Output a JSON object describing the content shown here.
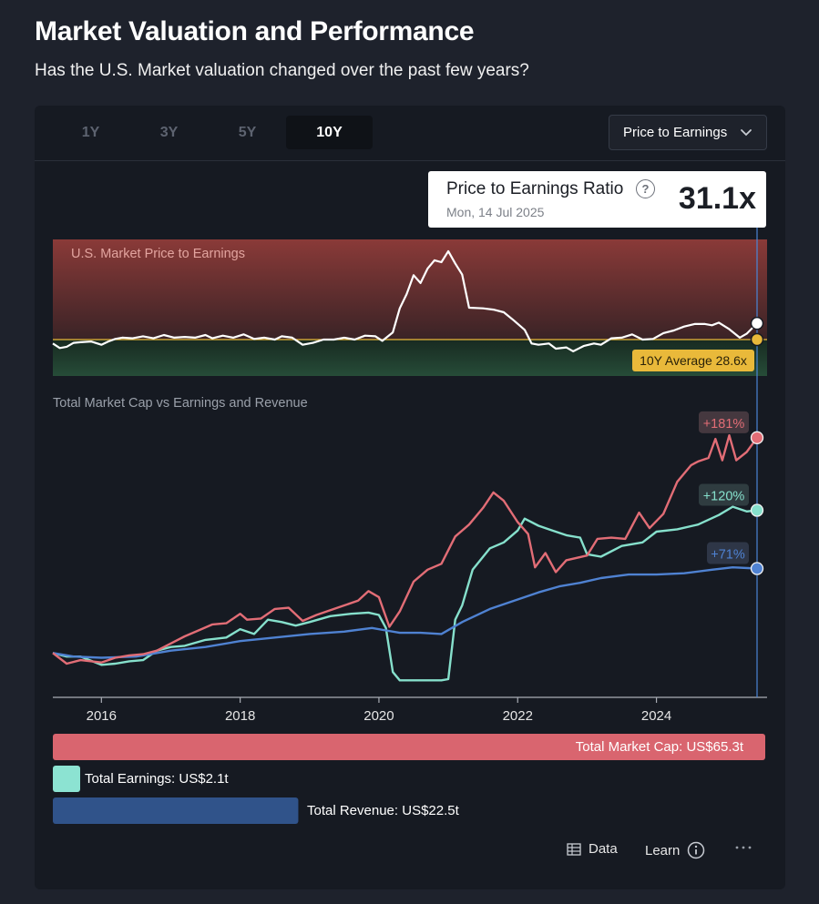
{
  "page": {
    "title": "Market Valuation and Performance",
    "subtitle": "Has the U.S. Market valuation changed over the past few years?"
  },
  "controls": {
    "range_tabs": [
      "1Y",
      "3Y",
      "5Y",
      "10Y"
    ],
    "active_range": "10Y",
    "metric_select": "Price to Earnings"
  },
  "tooltip": {
    "title": "Price to Earnings Ratio",
    "help_icon": "question-circle-icon",
    "date": "Mon, 14 Jul 2025",
    "value": "31.1x"
  },
  "footer": {
    "data_label": "Data",
    "learn_label": "Learn",
    "data_icon": "table-icon",
    "learn_icon": "info-icon",
    "more_icon": "more-horizontal-icon"
  },
  "chart_data": [
    {
      "type": "line",
      "title": "U.S. Market Price to Earnings",
      "average_label": "10Y Average 28.6x",
      "average": 28.6,
      "colors": {
        "line": "#ffffff",
        "average": "#e9b93a",
        "above_band": "#8a3a38",
        "below_band": "#264c38"
      },
      "series": [
        {
          "name": "Price to Earnings",
          "points": [
            [
              2015.3,
              28.0
            ],
            [
              2015.4,
              27.3
            ],
            [
              2015.5,
              27.5
            ],
            [
              2015.6,
              28.1
            ],
            [
              2015.7,
              28.2
            ],
            [
              2015.85,
              28.3
            ],
            [
              2016.0,
              27.8
            ],
            [
              2016.1,
              28.3
            ],
            [
              2016.2,
              28.7
            ],
            [
              2016.3,
              28.9
            ],
            [
              2016.45,
              28.8
            ],
            [
              2016.6,
              29.1
            ],
            [
              2016.75,
              28.8
            ],
            [
              2016.9,
              29.3
            ],
            [
              2017.05,
              28.9
            ],
            [
              2017.2,
              29.0
            ],
            [
              2017.35,
              28.9
            ],
            [
              2017.5,
              29.3
            ],
            [
              2017.6,
              28.8
            ],
            [
              2017.75,
              29.2
            ],
            [
              2017.9,
              28.9
            ],
            [
              2018.05,
              29.4
            ],
            [
              2018.2,
              28.7
            ],
            [
              2018.35,
              28.9
            ],
            [
              2018.5,
              28.6
            ],
            [
              2018.6,
              29.1
            ],
            [
              2018.75,
              28.9
            ],
            [
              2018.9,
              27.8
            ],
            [
              2019.05,
              28.1
            ],
            [
              2019.2,
              28.6
            ],
            [
              2019.35,
              28.6
            ],
            [
              2019.5,
              28.9
            ],
            [
              2019.65,
              28.6
            ],
            [
              2019.8,
              29.2
            ],
            [
              2019.95,
              29.1
            ],
            [
              2020.05,
              28.4
            ],
            [
              2020.2,
              29.7
            ],
            [
              2020.3,
              33.4
            ],
            [
              2020.4,
              35.6
            ],
            [
              2020.5,
              38.5
            ],
            [
              2020.6,
              37.3
            ],
            [
              2020.7,
              39.5
            ],
            [
              2020.8,
              40.8
            ],
            [
              2020.9,
              40.5
            ],
            [
              2021.0,
              42.2
            ],
            [
              2021.1,
              40.3
            ],
            [
              2021.2,
              38.6
            ],
            [
              2021.3,
              33.5
            ],
            [
              2021.5,
              33.4
            ],
            [
              2021.65,
              33.2
            ],
            [
              2021.8,
              32.8
            ],
            [
              2021.95,
              31.5
            ],
            [
              2022.1,
              30.1
            ],
            [
              2022.2,
              28.0
            ],
            [
              2022.3,
              27.8
            ],
            [
              2022.45,
              28.0
            ],
            [
              2022.55,
              27.2
            ],
            [
              2022.7,
              27.4
            ],
            [
              2022.8,
              26.8
            ],
            [
              2022.95,
              27.6
            ],
            [
              2023.1,
              28.0
            ],
            [
              2023.2,
              27.8
            ],
            [
              2023.35,
              28.8
            ],
            [
              2023.5,
              28.9
            ],
            [
              2023.65,
              29.4
            ],
            [
              2023.8,
              28.6
            ],
            [
              2023.95,
              28.7
            ],
            [
              2024.1,
              29.6
            ],
            [
              2024.25,
              30.0
            ],
            [
              2024.4,
              30.6
            ],
            [
              2024.55,
              31.0
            ],
            [
              2024.7,
              31.0
            ],
            [
              2024.8,
              30.8
            ],
            [
              2024.9,
              31.2
            ],
            [
              2025.05,
              30.2
            ],
            [
              2025.2,
              28.9
            ],
            [
              2025.3,
              29.5
            ],
            [
              2025.45,
              31.1
            ]
          ]
        }
      ]
    },
    {
      "type": "line",
      "title": "Total Market Cap vs Earnings and Revenue",
      "xlim": [
        2015.3,
        2025.45
      ],
      "x_ticks": [
        2016,
        2018,
        2020,
        2022,
        2024
      ],
      "series": [
        {
          "name": "Total Market Cap",
          "color": "#e26d76",
          "end_label": "+181%",
          "points": [
            [
              2015.3,
              0
            ],
            [
              2015.5,
              -9
            ],
            [
              2015.7,
              -6
            ],
            [
              2016.0,
              -8
            ],
            [
              2016.2,
              -4
            ],
            [
              2016.4,
              -2
            ],
            [
              2016.6,
              -1
            ],
            [
              2016.8,
              2
            ],
            [
              2017.0,
              8
            ],
            [
              2017.2,
              14
            ],
            [
              2017.4,
              19
            ],
            [
              2017.6,
              24
            ],
            [
              2017.8,
              25
            ],
            [
              2018.0,
              33
            ],
            [
              2018.1,
              28
            ],
            [
              2018.3,
              29
            ],
            [
              2018.5,
              37
            ],
            [
              2018.7,
              38
            ],
            [
              2018.9,
              27
            ],
            [
              2019.1,
              32
            ],
            [
              2019.3,
              36
            ],
            [
              2019.5,
              40
            ],
            [
              2019.7,
              44
            ],
            [
              2019.85,
              52
            ],
            [
              2020.0,
              47
            ],
            [
              2020.15,
              22
            ],
            [
              2020.3,
              35
            ],
            [
              2020.5,
              60
            ],
            [
              2020.7,
              70
            ],
            [
              2020.9,
              75
            ],
            [
              2021.1,
              98
            ],
            [
              2021.3,
              108
            ],
            [
              2021.5,
              122
            ],
            [
              2021.65,
              135
            ],
            [
              2021.8,
              128
            ],
            [
              2022.0,
              110
            ],
            [
              2022.15,
              100
            ],
            [
              2022.25,
              72
            ],
            [
              2022.4,
              84
            ],
            [
              2022.55,
              68
            ],
            [
              2022.7,
              78
            ],
            [
              2022.85,
              80
            ],
            [
              2023.0,
              82
            ],
            [
              2023.15,
              96
            ],
            [
              2023.35,
              97
            ],
            [
              2023.55,
              96
            ],
            [
              2023.75,
              118
            ],
            [
              2023.9,
              105
            ],
            [
              2024.1,
              117
            ],
            [
              2024.3,
              144
            ],
            [
              2024.5,
              158
            ],
            [
              2024.6,
              161
            ],
            [
              2024.75,
              164
            ],
            [
              2024.85,
              180
            ],
            [
              2024.95,
              162
            ],
            [
              2025.05,
              183
            ],
            [
              2025.15,
              162
            ],
            [
              2025.3,
              169
            ],
            [
              2025.45,
              181
            ]
          ]
        },
        {
          "name": "Total Earnings",
          "color": "#86e0cc",
          "end_label": "+120%",
          "points": [
            [
              2015.3,
              0
            ],
            [
              2015.5,
              -3
            ],
            [
              2015.7,
              -3
            ],
            [
              2016.0,
              -10
            ],
            [
              2016.2,
              -9
            ],
            [
              2016.4,
              -7
            ],
            [
              2016.6,
              -6
            ],
            [
              2016.8,
              2
            ],
            [
              2017.0,
              5
            ],
            [
              2017.2,
              6
            ],
            [
              2017.5,
              11
            ],
            [
              2017.8,
              13
            ],
            [
              2018.0,
              20
            ],
            [
              2018.2,
              16
            ],
            [
              2018.4,
              28
            ],
            [
              2018.6,
              26
            ],
            [
              2018.8,
              23
            ],
            [
              2019.0,
              26
            ],
            [
              2019.3,
              31
            ],
            [
              2019.6,
              33
            ],
            [
              2019.85,
              34
            ],
            [
              2020.0,
              32
            ],
            [
              2020.1,
              21
            ],
            [
              2020.2,
              -16
            ],
            [
              2020.3,
              -23
            ],
            [
              2020.6,
              -23
            ],
            [
              2020.9,
              -23
            ],
            [
              2021.0,
              -22
            ],
            [
              2021.1,
              28
            ],
            [
              2021.2,
              40
            ],
            [
              2021.35,
              70
            ],
            [
              2021.6,
              88
            ],
            [
              2021.8,
              93
            ],
            [
              2022.0,
              103
            ],
            [
              2022.1,
              113
            ],
            [
              2022.3,
              107
            ],
            [
              2022.5,
              103
            ],
            [
              2022.7,
              99
            ],
            [
              2022.9,
              97
            ],
            [
              2023.0,
              83
            ],
            [
              2023.2,
              81
            ],
            [
              2023.5,
              90
            ],
            [
              2023.8,
              93
            ],
            [
              2024.0,
              102
            ],
            [
              2024.3,
              104
            ],
            [
              2024.6,
              108
            ],
            [
              2024.9,
              116
            ],
            [
              2025.1,
              123
            ],
            [
              2025.3,
              119
            ],
            [
              2025.45,
              120
            ]
          ]
        },
        {
          "name": "Total Revenue",
          "color": "#4f82d2",
          "end_label": "+71%",
          "points": [
            [
              2015.3,
              0
            ],
            [
              2015.6,
              -3
            ],
            [
              2016.0,
              -4
            ],
            [
              2016.5,
              -3
            ],
            [
              2017.0,
              2
            ],
            [
              2017.5,
              5
            ],
            [
              2018.0,
              10
            ],
            [
              2018.5,
              13
            ],
            [
              2019.0,
              16
            ],
            [
              2019.5,
              18
            ],
            [
              2019.9,
              21
            ],
            [
              2020.1,
              19
            ],
            [
              2020.3,
              17
            ],
            [
              2020.6,
              17
            ],
            [
              2020.9,
              16
            ],
            [
              2021.2,
              26
            ],
            [
              2021.6,
              37
            ],
            [
              2022.0,
              45
            ],
            [
              2022.3,
              51
            ],
            [
              2022.6,
              56
            ],
            [
              2022.9,
              59
            ],
            [
              2023.2,
              63
            ],
            [
              2023.6,
              66
            ],
            [
              2024.0,
              66
            ],
            [
              2024.4,
              67
            ],
            [
              2024.8,
              70
            ],
            [
              2025.1,
              72
            ],
            [
              2025.45,
              71
            ]
          ]
        }
      ]
    },
    {
      "type": "bar",
      "orientation": "horizontal",
      "categories": [
        "Total Market Cap",
        "Total Earnings",
        "Total Revenue"
      ],
      "values": [
        65.3,
        2.1,
        22.5
      ],
      "labels": [
        "Total Market Cap: US$65.3t",
        "Total Earnings: US$2.1t",
        "Total Revenue: US$22.5t"
      ],
      "colors": [
        "#d9656f",
        "#8ce3d2",
        "#30538a"
      ]
    }
  ]
}
